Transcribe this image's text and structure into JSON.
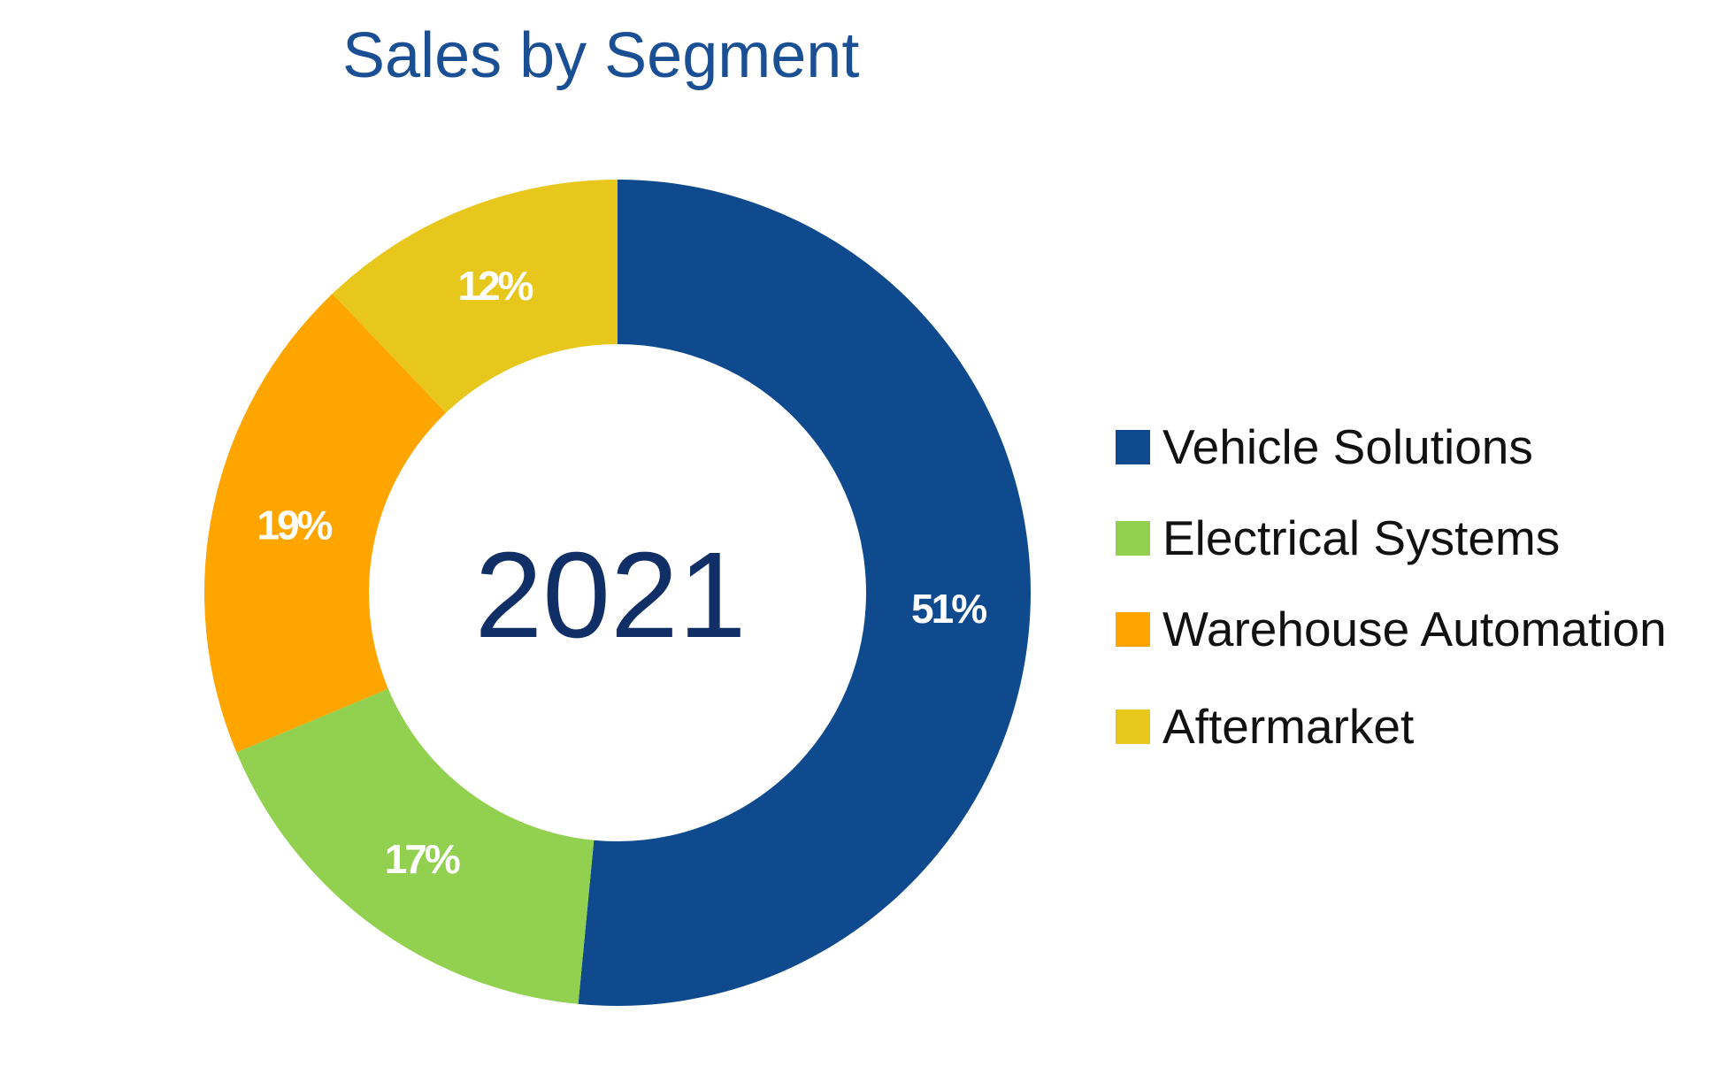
{
  "chart_data": {
    "type": "pie",
    "variant": "donut",
    "title": "Sales by Segment",
    "center_label": "2021",
    "slices": [
      {
        "name": "Vehicle Solutions",
        "value": 51,
        "label": "51%",
        "color": "#104A8E"
      },
      {
        "name": "Electrical Systems",
        "value": 17,
        "label": "17%",
        "color": "#92D050"
      },
      {
        "name": "Warehouse Automation",
        "value": 19,
        "label": "19%",
        "color": "#FFA500"
      },
      {
        "name": "Aftermarket",
        "value": 12,
        "label": "12%",
        "color": "#E8C71C"
      }
    ],
    "start": "top",
    "direction": "clockwise",
    "legend_position": "right",
    "colors": {
      "title": "#1A4F93",
      "center_label": "#0F2F66",
      "data_label": "#FFFFFF"
    }
  }
}
